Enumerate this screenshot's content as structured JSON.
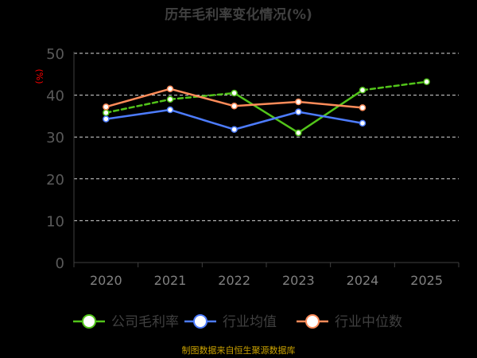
{
  "colors": {
    "background": "#000000",
    "grid": "#d9d9d9",
    "axis": "#404040",
    "ytick": "#5a5a5a",
    "xtick": "#808080",
    "unit": "#ff0000",
    "title": "#404040",
    "footer": "#c8a000"
  },
  "chart_data": {
    "type": "line",
    "title": "历年毛利率变化情况(%)",
    "ylabel": "(%)",
    "xlabel": "",
    "categories": [
      "2020",
      "2021",
      "2022",
      "2023",
      "2024",
      "2025"
    ],
    "ylim": [
      0,
      50
    ],
    "yticks": [
      0,
      10,
      20,
      30,
      40,
      50
    ],
    "grid": true,
    "legend_position": "bottom",
    "series": [
      {
        "name": "公司毛利率",
        "color": "#52c41a",
        "values": [
          35.8,
          39.0,
          40.5,
          31.0,
          41.2,
          43.2
        ],
        "dashed_segments": [
          0,
          1,
          4
        ]
      },
      {
        "name": "行业均值",
        "color": "#4d7cfe",
        "values": [
          34.3,
          36.5,
          31.8,
          36.0,
          33.3,
          null
        ],
        "dashed_segments": []
      },
      {
        "name": "行业中位数",
        "color": "#ff8c5a",
        "values": [
          37.2,
          41.5,
          37.4,
          38.4,
          37.0,
          null
        ],
        "dashed_segments": []
      }
    ]
  },
  "footer": "制图数据来自恒生聚源数据库"
}
